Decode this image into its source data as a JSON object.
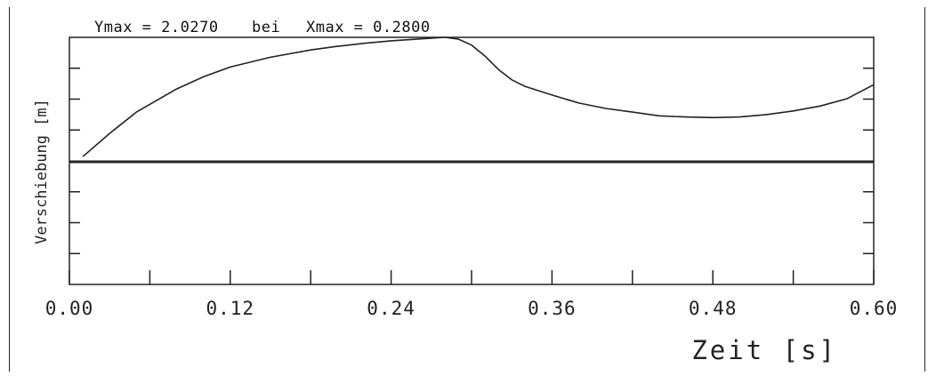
{
  "header": {
    "ymax_label": "Ymax = 2.0270",
    "bei_label": "bei",
    "xmax_label": "Xmax = 0.2800"
  },
  "chart_data": {
    "type": "line",
    "title": "",
    "xlabel": "Zeit [s]",
    "ylabel": "Verschiebung [m]",
    "xlim": [
      0.0,
      0.6
    ],
    "ylim": [
      -2.027,
      2.027
    ],
    "x_ticks": [
      "0.00",
      "0.12",
      "0.24",
      "0.36",
      "0.48",
      "0.60"
    ],
    "grid": false,
    "series": [
      {
        "name": "",
        "x": [
          0.01,
          0.03,
          0.05,
          0.08,
          0.1,
          0.12,
          0.15,
          0.18,
          0.2,
          0.22,
          0.24,
          0.26,
          0.28,
          0.29,
          0.3,
          0.31,
          0.32,
          0.33,
          0.34,
          0.36,
          0.38,
          0.4,
          0.42,
          0.44,
          0.46,
          0.48,
          0.5,
          0.52,
          0.54,
          0.56,
          0.58,
          0.6
        ],
        "y": [
          0.07,
          0.45,
          0.8,
          1.18,
          1.38,
          1.54,
          1.7,
          1.82,
          1.88,
          1.93,
          1.97,
          2.0,
          2.027,
          2.0,
          1.9,
          1.72,
          1.5,
          1.33,
          1.22,
          1.08,
          0.95,
          0.86,
          0.8,
          0.74,
          0.72,
          0.71,
          0.72,
          0.76,
          0.82,
          0.9,
          1.02,
          1.25
        ]
      }
    ]
  }
}
